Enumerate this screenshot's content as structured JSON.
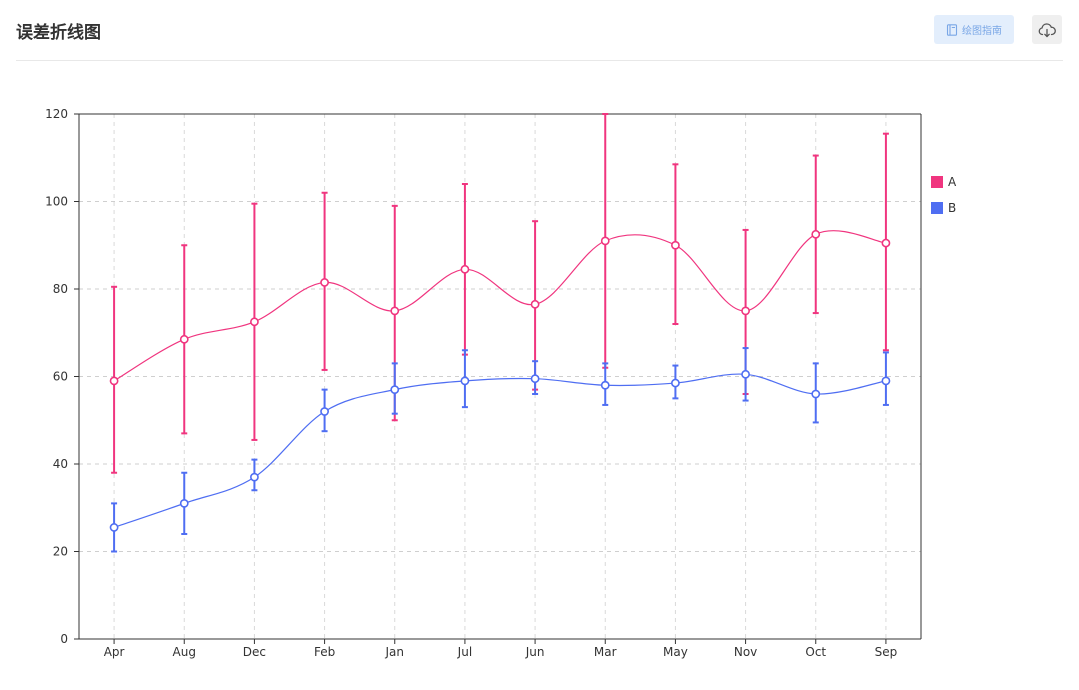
{
  "header": {
    "title": "误差折线图",
    "guide_label": "绘图指南",
    "guide_icon": "book-icon",
    "download_icon": "cloud-download-icon"
  },
  "chart_data": {
    "type": "line",
    "categories": [
      "Apr",
      "Aug",
      "Dec",
      "Feb",
      "Jan",
      "Jul",
      "Jun",
      "Mar",
      "May",
      "Nov",
      "Oct",
      "Sep"
    ],
    "ylim": [
      0,
      120
    ],
    "yticks": [
      0,
      20,
      40,
      60,
      80,
      100,
      120
    ],
    "grid": true,
    "legend_position": "right",
    "smooth": true,
    "series": [
      {
        "name": "A",
        "color": "#f0357f",
        "values": [
          59,
          68.5,
          72.5,
          81.5,
          75,
          84.5,
          76.5,
          91,
          90,
          75,
          92.5,
          90.5
        ],
        "upper": [
          80.5,
          90,
          99.5,
          102,
          99,
          104,
          95.5,
          120,
          108.5,
          93.5,
          110.5,
          115.5
        ],
        "lower": [
          38,
          47,
          45.5,
          61.5,
          50,
          65,
          57,
          62,
          72,
          56,
          74.5,
          66
        ]
      },
      {
        "name": "B",
        "color": "#4f6ef2",
        "values": [
          25.5,
          31,
          37,
          52,
          57,
          59,
          59.5,
          58,
          58.5,
          60.5,
          56,
          59
        ],
        "upper": [
          31,
          38,
          41,
          57,
          63,
          66,
          63.5,
          63,
          62.5,
          66.5,
          63,
          65.5
        ],
        "lower": [
          20,
          24,
          34,
          47.5,
          51.5,
          53,
          56,
          53.5,
          55,
          54.5,
          49.5,
          53.5
        ]
      }
    ]
  }
}
